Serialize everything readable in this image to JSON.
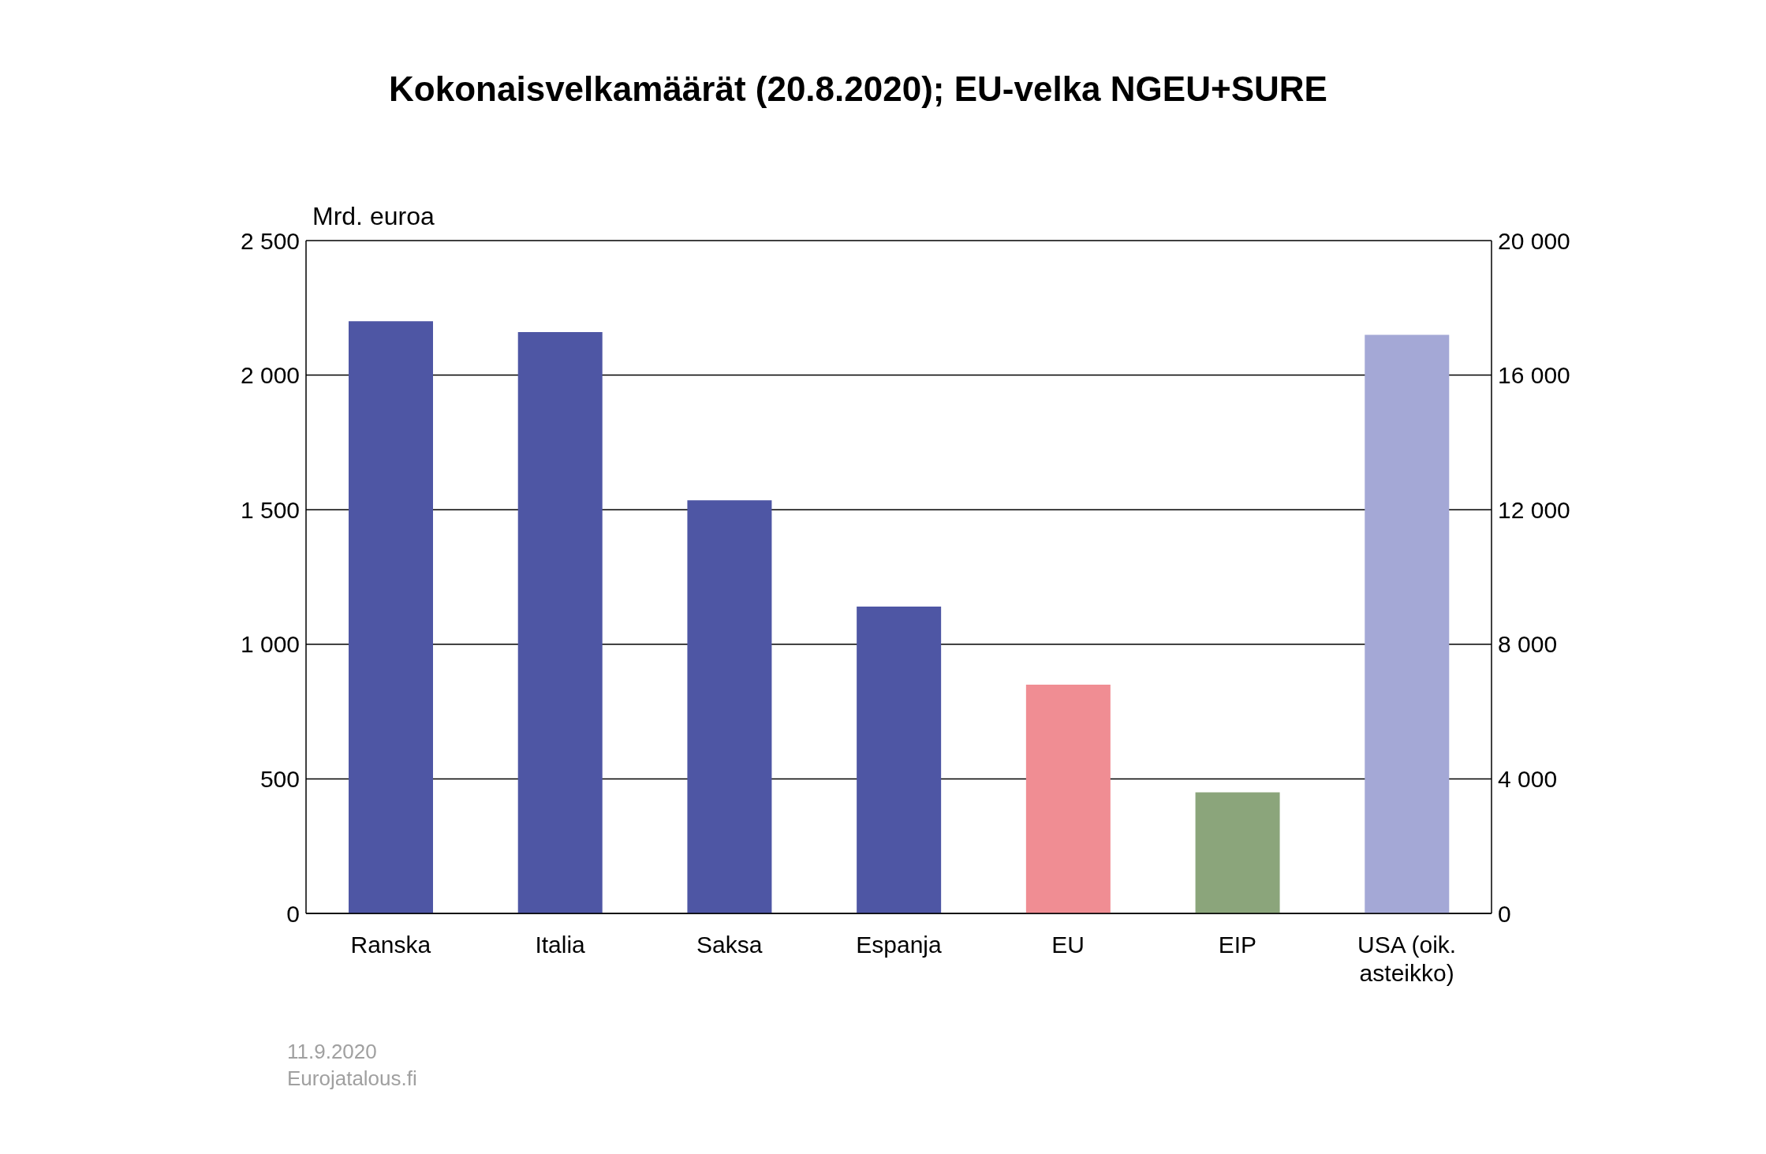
{
  "chart_data": {
    "type": "bar",
    "title": "Kokonaisvelkamäärät (20.8.2020); EU-velka NGEU+SURE",
    "ylabel": "Mrd. euroa",
    "categories": [
      "Ranska",
      "Italia",
      "Saksa",
      "Espanja",
      "EU",
      "EIP",
      "USA (oik. asteikko)"
    ],
    "series": [
      {
        "colors": [
          "#4e56a4",
          "#4e56a4",
          "#4e56a4",
          "#4e56a4",
          "#f08d93",
          "#8ba57b",
          null
        ],
        "values": [
          2200,
          2160,
          1535,
          1140,
          850,
          450,
          null
        ]
      },
      {
        "color": "#a4a8d6",
        "axis": "y2",
        "values": [
          null,
          null,
          null,
          null,
          null,
          null,
          17200
        ]
      }
    ],
    "ylim": [
      0,
      2500
    ],
    "yticks": [
      0,
      500,
      {
        "value": 1000,
        "label": "1 000"
      },
      {
        "value": 1500,
        "label": "1 500"
      },
      {
        "value": 2000,
        "label": "2 000"
      },
      {
        "value": 2500,
        "label": "2 500"
      }
    ],
    "y2lim": [
      0,
      20000
    ],
    "y2ticks": [
      0,
      {
        "value": 4000,
        "label": "4 000"
      },
      {
        "value": 8000,
        "label": "8 000"
      },
      {
        "value": 12000,
        "label": "12 000"
      },
      {
        "value": 16000,
        "label": "16 000"
      },
      {
        "value": 20000,
        "label": "20 000"
      }
    ],
    "grid": "y",
    "annotations": [
      "11.9.2020",
      "Eurojatalous.fi"
    ]
  }
}
